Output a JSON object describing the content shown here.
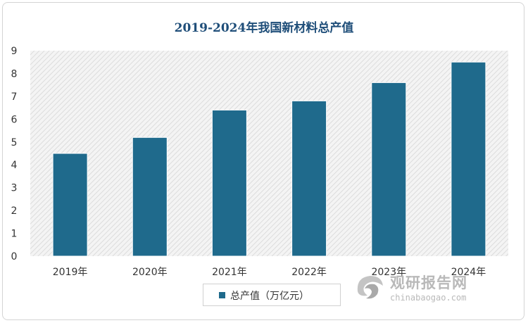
{
  "chart_data": {
    "type": "bar",
    "title": "2019-2024年我国新材料总产值",
    "categories": [
      "2019年",
      "2020年",
      "2021年",
      "2022年",
      "2023年",
      "2024年"
    ],
    "series": [
      {
        "name": "总产值（万亿元）",
        "values": [
          4.5,
          5.2,
          6.4,
          6.8,
          7.6,
          8.5
        ],
        "color": "#1f6a8c"
      }
    ],
    "ylim": [
      0,
      9
    ],
    "yticks": [
      "0",
      "1",
      "2",
      "3",
      "4",
      "5",
      "6",
      "7",
      "8",
      "9"
    ],
    "xlabel": "",
    "ylabel": "",
    "grid": false,
    "plot_background": "hatched",
    "legend_position": "bottom"
  },
  "watermark": {
    "brand_cn": "观研报告网",
    "brand_en": "chinabaogao.com",
    "icon": "swirl-logo-icon"
  }
}
